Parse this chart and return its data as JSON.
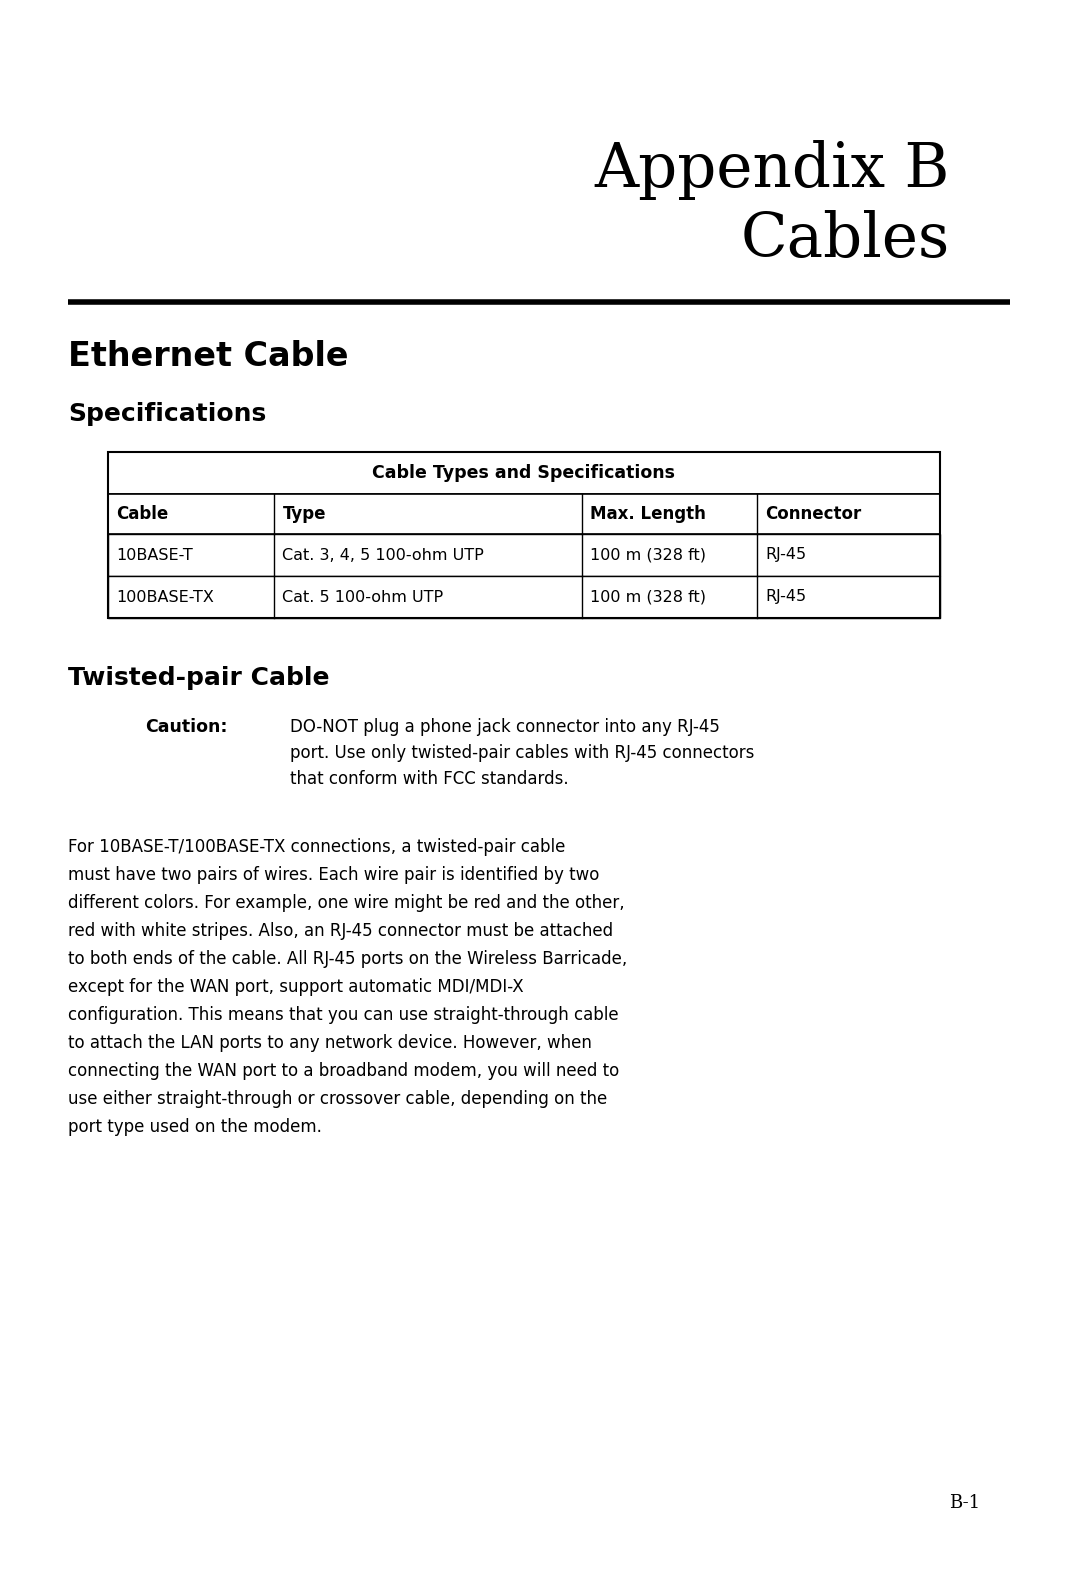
{
  "bg_color": "#ffffff",
  "title_line1": "Appendix B",
  "title_line2": "Cables",
  "section1_heading": "Ethernet Cable",
  "section2_heading": "Specifications",
  "table_title": "Cable Types and Specifications",
  "table_col_headers": [
    "Cable",
    "Type",
    "Max. Length",
    "Connector"
  ],
  "table_rows": [
    [
      "10BASE-T",
      "Cat. 3, 4, 5 100-ohm UTP",
      "100 m (328 ft)",
      "RJ-45"
    ],
    [
      "100BASE-TX",
      "Cat. 5 100-ohm UTP",
      "100 m (328 ft)",
      "RJ-45"
    ]
  ],
  "section3_heading": "Twisted-pair Cable",
  "caution_label": "Caution:",
  "caution_line1": "DO-NOT plug a phone jack connector into any RJ-45",
  "caution_line2": "port. Use only twisted-pair cables with RJ-45 connectors",
  "caution_line3": "that conform with FCC standards.",
  "body_lines": [
    "For 10BASE-T/100BASE-TX connections, a twisted-pair cable",
    "must have two pairs of wires. Each wire pair is identified by two",
    "different colors. For example, one wire might be red and the other,",
    "red with white stripes. Also, an RJ-45 connector must be attached",
    "to both ends of the cable. All RJ-45 ports on the Wireless Barricade,",
    "except for the WAN port, support automatic MDI/MDI-X",
    "configuration. This means that you can use straight-through cable",
    "to attach the LAN ports to any network device. However, when",
    "connecting the WAN port to a broadband modem, you will need to",
    "use either straight-through or crossover cable, depending on the",
    "port type used on the modem."
  ],
  "page_number": "B-1",
  "text_color": "#000000"
}
